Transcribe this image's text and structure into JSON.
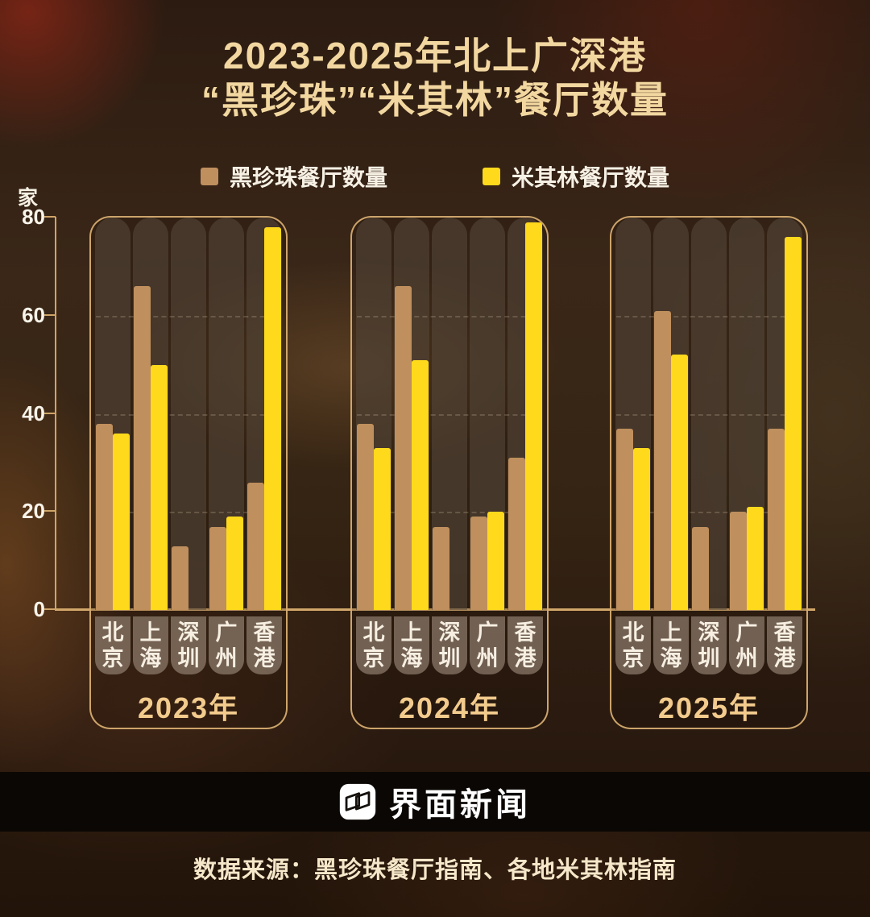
{
  "title": {
    "line1": "2023-2025年北上广深港",
    "line2": "“黑珍珠”“米其林”餐厅数量"
  },
  "legend": [
    {
      "label": "黑珍珠餐厅数量",
      "color": "#bf8f5d"
    },
    {
      "label": "米其林餐厅数量",
      "color": "#ffd91c"
    }
  ],
  "axis": {
    "unit": "家",
    "ticks": [
      80,
      60,
      40,
      20,
      0
    ]
  },
  "chart_data": {
    "type": "bar",
    "title": "2023-2025年北上广深港“黑珍珠”“米其林”餐厅数量",
    "ylabel": "家",
    "ylim": [
      0,
      80
    ],
    "yticks": [
      0,
      20,
      40,
      60,
      80
    ],
    "gridlines": [
      20,
      40,
      60
    ],
    "grid": "dashed",
    "legend_position": "top",
    "group_labels": [
      "2023年",
      "2024年",
      "2025年"
    ],
    "categories": [
      "北京",
      "上海",
      "深圳",
      "广州",
      "香港"
    ],
    "series": [
      {
        "name": "黑珍珠餐厅数量",
        "color": "#bf8f5d",
        "values_by_year": {
          "2023年": [
            38,
            66,
            13,
            17,
            26
          ],
          "2024年": [
            38,
            66,
            17,
            19,
            31
          ],
          "2025年": [
            37,
            61,
            17,
            20,
            37
          ]
        }
      },
      {
        "name": "米其林餐厅数量",
        "color": "#ffd91c",
        "values_by_year": {
          "2023年": [
            36,
            50,
            null,
            19,
            78
          ],
          "2024年": [
            33,
            51,
            null,
            20,
            79
          ],
          "2025年": [
            33,
            52,
            null,
            21,
            76
          ]
        }
      }
    ]
  },
  "footer": {
    "brand": "界面新闻",
    "source": "数据来源：黑珍珠餐厅指南、各地米其林指南"
  }
}
